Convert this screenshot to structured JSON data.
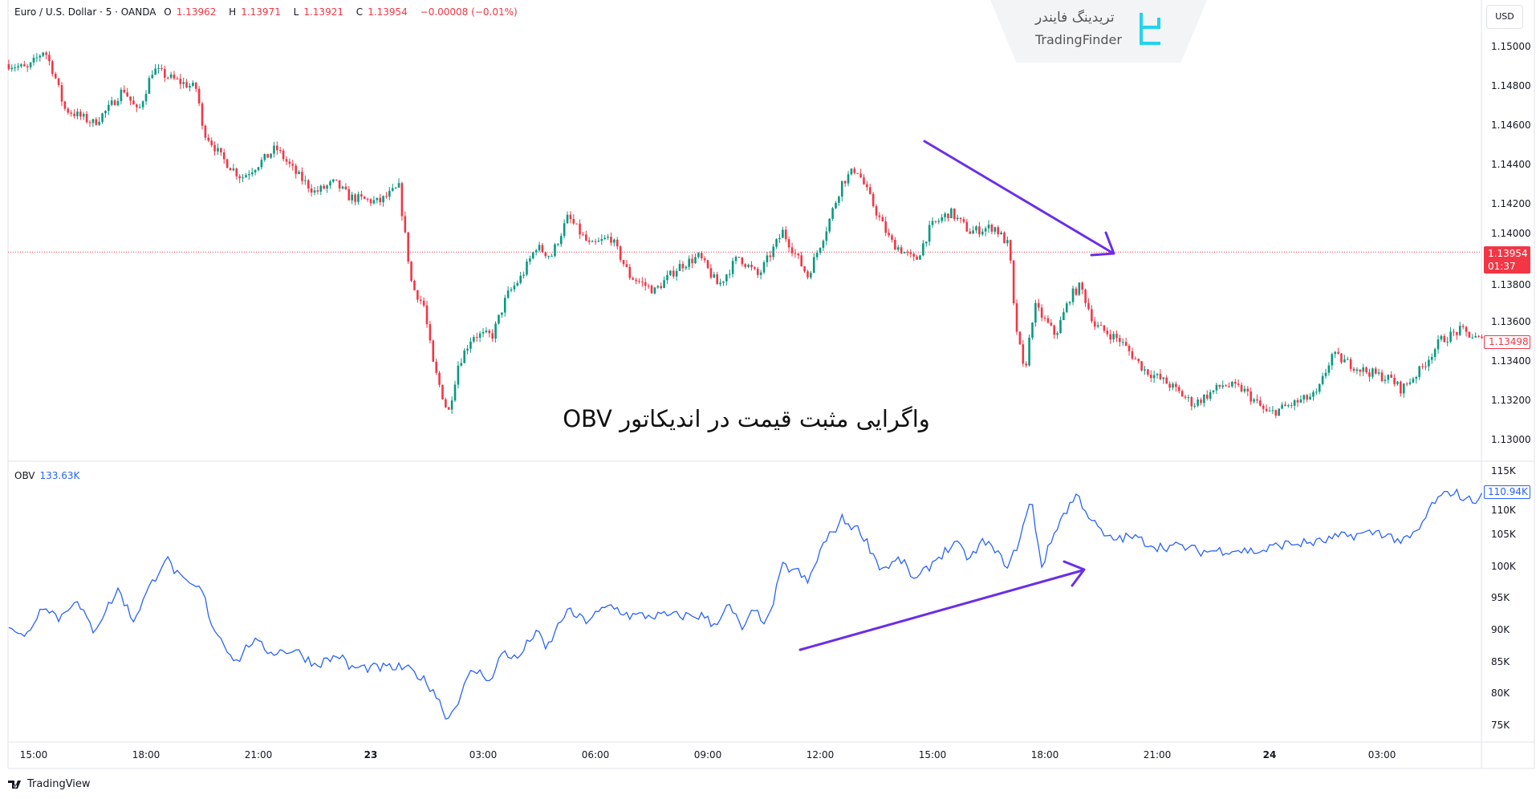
{
  "header": {
    "symbol": "Euro / U.S. Dollar · 5 · OANDA",
    "open_label": "O",
    "open": "1.13962",
    "high_label": "H",
    "high": "1.13971",
    "low_label": "L",
    "low": "1.13921",
    "close_label": "C",
    "close": "1.13954",
    "change": "−0.00008 (−0.01%)"
  },
  "currency": "USD",
  "watermark": {
    "fa": "تریدینگ فایندر",
    "en": "TradingFinder"
  },
  "caption": "واگرایی مثبت قیمت در اندیکاتور OBV",
  "obv_legend": {
    "name": "OBV",
    "value": "133.63K"
  },
  "price_axis": [
    "1.15000",
    "1.14800",
    "1.14600",
    "1.14400",
    "1.14200",
    "1.14000",
    "1.13800",
    "1.13600",
    "1.13400",
    "1.13200",
    "1.13000"
  ],
  "current_price": {
    "value": "1.13954",
    "countdown": "01:37"
  },
  "last_price": "1.13498",
  "obv_axis": [
    "115K",
    "110K",
    "105K",
    "100K",
    "95K",
    "90K",
    "85K",
    "80K",
    "75K"
  ],
  "obv_last": "110.94K",
  "time_axis": [
    {
      "label": "15:00",
      "t": "22 15:00"
    },
    {
      "label": "18:00",
      "t": "22 18:00"
    },
    {
      "label": "21:00",
      "t": "22 21:00"
    },
    {
      "label": "23",
      "t": "23 00:00",
      "bold": true
    },
    {
      "label": "03:00",
      "t": "23 03:00"
    },
    {
      "label": "06:00",
      "t": "23 06:00"
    },
    {
      "label": "09:00",
      "t": "23 09:00"
    },
    {
      "label": "12:00",
      "t": "23 12:00"
    },
    {
      "label": "15:00",
      "t": "23 15:00"
    },
    {
      "label": "18:00",
      "t": "23 18:00"
    },
    {
      "label": "21:00",
      "t": "23 21:00"
    },
    {
      "label": "24",
      "t": "24 00:00",
      "bold": true
    },
    {
      "label": "03:00",
      "t": "24 03:00"
    }
  ],
  "branding": "TradingView",
  "colors": {
    "up": "#089981",
    "down": "#f23645",
    "obv": "#2962ff",
    "arrow": "#6a2ee8",
    "price_line": "#f23645"
  },
  "chart_data": [
    {
      "type": "candlestick",
      "interval": "5 min",
      "ylim": [
        1.13,
        1.15
      ],
      "current_price": 1.13954,
      "close_path": [
        [
          "22 14:20",
          1.1491
        ],
        [
          "22 14:50",
          1.14885
        ],
        [
          "22 15:17",
          1.14985
        ],
        [
          "22 15:33",
          1.1486
        ],
        [
          "22 15:49",
          1.14684
        ],
        [
          "22 16:36",
          1.1461
        ],
        [
          "22 17:00",
          1.14684
        ],
        [
          "22 17:24",
          1.14785
        ],
        [
          "22 17:47",
          1.1466
        ],
        [
          "22 18:11",
          1.14885
        ],
        [
          "22 18:42",
          1.14835
        ],
        [
          "22 19:22",
          1.14785
        ],
        [
          "22 19:30",
          1.14584
        ],
        [
          "22 20:01",
          1.14434
        ],
        [
          "22 20:33",
          1.14333
        ],
        [
          "22 21:12",
          1.14434
        ],
        [
          "22 21:28",
          1.14484
        ],
        [
          "22 21:59",
          1.14358
        ],
        [
          "22 22:31",
          1.14258
        ],
        [
          "22 23:02",
          1.14308
        ],
        [
          "22 23:26",
          1.14233
        ],
        [
          "23 00:13",
          1.14208
        ],
        [
          "23 00:45",
          1.14283
        ],
        [
          "23 00:53",
          1.14083
        ],
        [
          "23 01:06",
          1.13782
        ],
        [
          "23 01:25",
          1.13682
        ],
        [
          "23 01:40",
          1.13381
        ],
        [
          "23 02:04",
          1.1313
        ],
        [
          "23 02:20",
          1.13381
        ],
        [
          "23 02:43",
          1.13531
        ],
        [
          "23 03:15",
          1.13531
        ],
        [
          "23 03:38",
          1.13732
        ],
        [
          "23 04:02",
          1.13832
        ],
        [
          "23 04:25",
          1.13982
        ],
        [
          "23 04:49",
          1.13932
        ],
        [
          "23 05:16",
          1.14133
        ],
        [
          "23 05:52",
          1.13982
        ],
        [
          "23 06:24",
          1.14032
        ],
        [
          "23 06:55",
          1.13832
        ],
        [
          "23 07:35",
          1.13757
        ],
        [
          "23 08:14",
          1.13882
        ],
        [
          "23 08:46",
          1.13932
        ],
        [
          "23 09:17",
          1.13782
        ],
        [
          "23 09:49",
          1.13932
        ],
        [
          "23 10:21",
          1.13832
        ],
        [
          "23 11:00",
          1.14058
        ],
        [
          "23 11:40",
          1.13832
        ],
        [
          "23 12:11",
          1.14083
        ],
        [
          "23 12:35",
          1.14308
        ],
        [
          "23 12:58",
          1.14383
        ],
        [
          "23 13:30",
          1.14158
        ],
        [
          "23 13:53",
          1.14008
        ],
        [
          "23 14:33",
          1.13907
        ],
        [
          "23 14:57",
          1.14083
        ],
        [
          "23 15:28",
          1.14158
        ],
        [
          "23 16:00",
          1.14058
        ],
        [
          "23 16:39",
          1.14083
        ],
        [
          "23 17:03",
          1.13982
        ],
        [
          "23 17:11",
          1.13631
        ],
        [
          "23 17:27",
          1.13331
        ],
        [
          "23 17:43",
          1.13682
        ],
        [
          "23 18:17",
          1.13531
        ],
        [
          "23 18:41",
          1.13732
        ],
        [
          "23 18:57",
          1.13782
        ],
        [
          "23 19:20",
          1.13581
        ],
        [
          "23 20:00",
          1.13506
        ],
        [
          "23 20:39",
          1.13356
        ],
        [
          "23 21:19",
          1.13281
        ],
        [
          "23 21:58",
          1.1318
        ],
        [
          "23 22:46",
          1.13281
        ],
        [
          "23 23:17",
          1.13256
        ],
        [
          "23 23:57",
          1.1313
        ],
        [
          "24 00:36",
          1.1318
        ],
        [
          "24 01:16",
          1.1323
        ],
        [
          "24 01:40",
          1.13431
        ],
        [
          "24 02:27",
          1.13356
        ],
        [
          "24 03:15",
          1.13306
        ],
        [
          "24 03:31",
          1.13256
        ],
        [
          "24 04:02",
          1.13356
        ],
        [
          "24 04:34",
          1.13506
        ],
        [
          "24 05:06",
          1.13556
        ],
        [
          "24 05:42",
          1.13498
        ]
      ]
    },
    {
      "type": "line",
      "name": "OBV",
      "ylim": [
        72,
        117
      ],
      "unit": "K",
      "points": [
        [
          "22 14:20",
          91.1
        ],
        [
          "22 14:45",
          88.6
        ],
        [
          "22 15:17",
          94.2
        ],
        [
          "22 15:41",
          91.7
        ],
        [
          "22 16:05",
          94.8
        ],
        [
          "22 16:36",
          89.9
        ],
        [
          "22 17:16",
          96.4
        ],
        [
          "22 17:39",
          91.4
        ],
        [
          "22 18:03",
          96.1
        ],
        [
          "22 18:31",
          101.4
        ],
        [
          "22 18:58",
          97.6
        ],
        [
          "22 19:30",
          96.1
        ],
        [
          "22 19:46",
          90.7
        ],
        [
          "22 20:25",
          84.9
        ],
        [
          "22 20:49",
          88.3
        ],
        [
          "22 21:20",
          86.5
        ],
        [
          "22 21:59",
          86.8
        ],
        [
          "22 22:31",
          84.5
        ],
        [
          "22 23:10",
          86.0
        ],
        [
          "22 23:26",
          84.0
        ],
        [
          "23 00:05",
          84.0
        ],
        [
          "23 00:53",
          84.0
        ],
        [
          "23 01:16",
          82.9
        ],
        [
          "23 01:40",
          80.6
        ],
        [
          "23 02:04",
          75.9
        ],
        [
          "23 02:20",
          79.0
        ],
        [
          "23 02:43",
          83.7
        ],
        [
          "23 03:15",
          82.2
        ],
        [
          "23 03:31",
          86.8
        ],
        [
          "23 03:54",
          85.2
        ],
        [
          "23 04:25",
          89.9
        ],
        [
          "23 04:41",
          86.8
        ],
        [
          "23 05:13",
          93.0
        ],
        [
          "23 05:44",
          91.4
        ],
        [
          "23 06:24",
          93.8
        ],
        [
          "23 06:55",
          92.2
        ],
        [
          "23 07:27",
          92.2
        ],
        [
          "23 08:14",
          92.2
        ],
        [
          "23 08:53",
          92.2
        ],
        [
          "23 09:09",
          90.7
        ],
        [
          "23 09:33",
          93.8
        ],
        [
          "23 09:57",
          89.9
        ],
        [
          "23 10:13",
          93.0
        ],
        [
          "23 10:36",
          91.1
        ],
        [
          "23 11:00",
          100.0
        ],
        [
          "23 11:24",
          99.2
        ],
        [
          "23 11:40",
          97.3
        ],
        [
          "23 12:03",
          103.1
        ],
        [
          "23 12:35",
          107.4
        ],
        [
          "23 13:06",
          105.4
        ],
        [
          "23 13:38",
          99.5
        ],
        [
          "23 14:09",
          101.1
        ],
        [
          "23 14:33",
          97.6
        ],
        [
          "23 15:05",
          101.1
        ],
        [
          "23 15:36",
          103.6
        ],
        [
          "23 16:00",
          101.1
        ],
        [
          "23 16:24",
          104.2
        ],
        [
          "23 16:39",
          102.3
        ],
        [
          "23 17:03",
          100.0
        ],
        [
          "23 17:19",
          104.2
        ],
        [
          "23 17:38",
          110.5
        ],
        [
          "23 17:55",
          100.0
        ],
        [
          "23 18:22",
          106.9
        ],
        [
          "23 18:51",
          111.3
        ],
        [
          "23 19:17",
          106.9
        ],
        [
          "23 19:41",
          104.2
        ],
        [
          "23 20:20",
          104.6
        ],
        [
          "23 21:00",
          103.1
        ],
        [
          "23 21:39",
          103.1
        ],
        [
          "23 22:11",
          102.3
        ],
        [
          "23 22:58",
          102.6
        ],
        [
          "23 23:45",
          102.3
        ],
        [
          "24 00:17",
          103.4
        ],
        [
          "24 01:20",
          103.8
        ],
        [
          "24 01:52",
          104.6
        ],
        [
          "24 02:55",
          105.4
        ],
        [
          "24 03:35",
          103.8
        ],
        [
          "24 03:58",
          105.4
        ],
        [
          "24 04:22",
          110.0
        ],
        [
          "24 04:53",
          111.9
        ],
        [
          "24 05:17",
          110.3
        ],
        [
          "24 05:42",
          110.9
        ]
      ]
    }
  ]
}
